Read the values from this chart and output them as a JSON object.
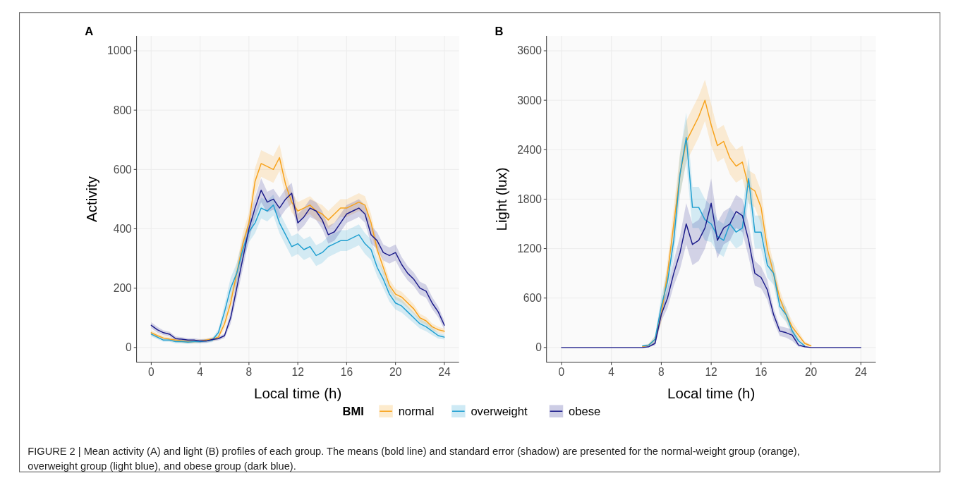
{
  "chart_data": [
    {
      "type": "line",
      "title": "A",
      "xlabel": "Local time (h)",
      "ylabel": "Activity",
      "legend": "bottom",
      "legend_title": "BMI",
      "grid": true,
      "xlim": [
        -1.2,
        25.2
      ],
      "xticks": [
        0,
        4,
        8,
        12,
        16,
        20,
        24
      ],
      "ylim": [
        -50,
        1050
      ],
      "yticks": [
        0,
        200,
        400,
        600,
        800,
        1000
      ],
      "annotations": [
        "FIGURE 2 | Mean activity (A) and light (B) profiles of each group. The means (bold line) and standard error (shadow) are presented for the normal-weight group (orange), overweight group (light blue), and obese group (dark blue)."
      ],
      "x": [
        0,
        0.5,
        1,
        1.5,
        2,
        2.5,
        3,
        3.5,
        4,
        4.5,
        5,
        5.5,
        6,
        6.5,
        7,
        7.5,
        8,
        8.5,
        9,
        9.5,
        10,
        10.5,
        11,
        11.5,
        12,
        12.5,
        13,
        13.5,
        14,
        14.5,
        15,
        15.5,
        16,
        16.5,
        17,
        17.5,
        18,
        18.5,
        19,
        19.5,
        20,
        20.5,
        21,
        21.5,
        22,
        22.5,
        23,
        23.5,
        24
      ],
      "series": [
        {
          "name": "normal",
          "color": "#f7a21b",
          "values": [
            50,
            40,
            32,
            28,
            25,
            22,
            20,
            20,
            22,
            25,
            28,
            35,
            80,
            150,
            250,
            350,
            420,
            560,
            620,
            610,
            600,
            640,
            550,
            490,
            460,
            470,
            480,
            460,
            450,
            430,
            450,
            470,
            470,
            480,
            490,
            480,
            420,
            330,
            270,
            210,
            180,
            170,
            150,
            130,
            100,
            90,
            70,
            60,
            55
          ],
          "lower": [
            42,
            32,
            25,
            21,
            19,
            16,
            14,
            14,
            16,
            19,
            21,
            27,
            62,
            125,
            220,
            315,
            385,
            515,
            575,
            565,
            555,
            595,
            510,
            455,
            430,
            440,
            450,
            430,
            420,
            400,
            420,
            440,
            440,
            450,
            460,
            450,
            390,
            305,
            245,
            190,
            162,
            152,
            133,
            114,
            86,
            77,
            59,
            50,
            46
          ],
          "upper": [
            58,
            48,
            39,
            35,
            31,
            28,
            26,
            26,
            28,
            31,
            35,
            43,
            98,
            175,
            280,
            385,
            455,
            605,
            665,
            655,
            645,
            685,
            590,
            525,
            490,
            500,
            510,
            490,
            480,
            460,
            480,
            500,
            500,
            510,
            520,
            510,
            450,
            355,
            295,
            230,
            198,
            188,
            167,
            146,
            114,
            103,
            81,
            70,
            64
          ]
        },
        {
          "name": "overweight",
          "color": "#1f9fd0",
          "values": [
            45,
            35,
            25,
            25,
            20,
            20,
            18,
            20,
            20,
            22,
            25,
            50,
            120,
            200,
            250,
            330,
            390,
            420,
            470,
            460,
            480,
            420,
            380,
            340,
            350,
            330,
            340,
            310,
            320,
            340,
            350,
            360,
            360,
            370,
            380,
            350,
            330,
            270,
            230,
            180,
            150,
            140,
            120,
            100,
            80,
            70,
            55,
            40,
            35
          ],
          "lower": [
            37,
            28,
            19,
            19,
            14,
            14,
            12,
            14,
            14,
            16,
            18,
            38,
            95,
            165,
            215,
            295,
            355,
            385,
            435,
            425,
            445,
            385,
            345,
            305,
            315,
            295,
            305,
            275,
            285,
            305,
            315,
            325,
            325,
            335,
            345,
            315,
            295,
            240,
            200,
            155,
            128,
            118,
            100,
            82,
            64,
            55,
            42,
            30,
            27
          ],
          "upper": [
            53,
            42,
            31,
            31,
            26,
            26,
            24,
            26,
            26,
            28,
            32,
            62,
            145,
            235,
            285,
            365,
            425,
            455,
            505,
            495,
            515,
            455,
            415,
            375,
            385,
            365,
            375,
            345,
            355,
            375,
            385,
            395,
            395,
            405,
            415,
            385,
            365,
            300,
            260,
            205,
            172,
            162,
            140,
            118,
            96,
            85,
            68,
            50,
            43
          ]
        },
        {
          "name": "obese",
          "color": "#1c1c8a",
          "values": [
            75,
            60,
            50,
            45,
            30,
            28,
            25,
            25,
            22,
            22,
            27,
            30,
            40,
            100,
            200,
            300,
            400,
            470,
            530,
            490,
            500,
            470,
            500,
            520,
            420,
            440,
            470,
            460,
            430,
            380,
            390,
            420,
            450,
            460,
            470,
            450,
            380,
            360,
            320,
            310,
            320,
            280,
            250,
            230,
            200,
            190,
            150,
            120,
            75
          ],
          "lower": [
            65,
            50,
            42,
            37,
            23,
            21,
            19,
            19,
            16,
            16,
            21,
            24,
            32,
            80,
            170,
            265,
            365,
            435,
            490,
            455,
            465,
            435,
            465,
            485,
            390,
            410,
            440,
            430,
            400,
            350,
            360,
            390,
            420,
            430,
            440,
            420,
            350,
            332,
            293,
            283,
            293,
            255,
            226,
            207,
            178,
            168,
            130,
            102,
            60
          ],
          "upper": [
            85,
            70,
            58,
            53,
            37,
            35,
            31,
            31,
            28,
            28,
            33,
            36,
            48,
            120,
            230,
            335,
            435,
            505,
            570,
            525,
            535,
            505,
            535,
            555,
            450,
            470,
            500,
            490,
            460,
            410,
            420,
            450,
            480,
            490,
            500,
            480,
            410,
            388,
            347,
            337,
            347,
            305,
            274,
            253,
            222,
            212,
            170,
            138,
            90
          ]
        }
      ]
    },
    {
      "type": "line",
      "title": "B",
      "xlabel": "Local time (h)",
      "ylabel": "Light (lux)",
      "grid": true,
      "xlim": [
        -1.2,
        25.2
      ],
      "xticks": [
        0,
        4,
        8,
        12,
        16,
        20,
        24
      ],
      "ylim": [
        -180,
        3780
      ],
      "yticks": [
        0,
        600,
        1200,
        1800,
        2400,
        3000,
        3600
      ],
      "x": [
        0,
        0.5,
        1,
        1.5,
        2,
        2.5,
        3,
        3.5,
        4,
        4.5,
        5,
        5.5,
        6,
        6.5,
        7,
        7.5,
        8,
        8.5,
        9,
        9.5,
        10,
        10.5,
        11,
        11.5,
        12,
        12.5,
        13,
        13.5,
        14,
        14.5,
        15,
        15.5,
        16,
        16.5,
        17,
        17.5,
        18,
        18.5,
        19,
        19.5,
        20,
        20.5,
        21,
        21.5,
        22,
        22.5,
        23,
        23.5,
        24
      ],
      "series": [
        {
          "color": "#f7a21b",
          "values": [
            null,
            null,
            null,
            null,
            null,
            null,
            null,
            null,
            null,
            null,
            null,
            null,
            null,
            10,
            30,
            100,
            400,
            900,
            1500,
            2100,
            2500,
            2650,
            2800,
            3000,
            2700,
            2450,
            2500,
            2300,
            2200,
            2250,
            1950,
            1900,
            1700,
            1200,
            900,
            600,
            400,
            250,
            150,
            50,
            20,
            null,
            null,
            null,
            null,
            null,
            null,
            null,
            null
          ],
          "lower": [
            null,
            null,
            null,
            null,
            null,
            null,
            null,
            null,
            null,
            null,
            null,
            null,
            null,
            5,
            15,
            60,
            300,
            750,
            1300,
            1850,
            2250,
            2400,
            2550,
            2750,
            2450,
            2250,
            2300,
            2100,
            2000,
            2050,
            1750,
            1700,
            1500,
            1050,
            780,
            500,
            320,
            180,
            100,
            25,
            8,
            null,
            null,
            null,
            null,
            null,
            null,
            null,
            null
          ],
          "upper": [
            null,
            null,
            null,
            null,
            null,
            null,
            null,
            null,
            null,
            null,
            null,
            null,
            null,
            15,
            45,
            140,
            500,
            1050,
            1700,
            2350,
            2750,
            2900,
            3050,
            3250,
            2950,
            2650,
            2700,
            2500,
            2400,
            2450,
            2150,
            2100,
            1900,
            1350,
            1020,
            700,
            480,
            320,
            200,
            75,
            32,
            null,
            null,
            null,
            null,
            null,
            null,
            null,
            null
          ]
        },
        {
          "color": "#1f9fd0",
          "values": [
            null,
            null,
            null,
            null,
            null,
            null,
            null,
            null,
            null,
            null,
            null,
            null,
            null,
            20,
            30,
            100,
            500,
            800,
            1300,
            2100,
            2550,
            1700,
            1700,
            1550,
            1500,
            1350,
            1300,
            1500,
            1400,
            1450,
            2050,
            1400,
            1400,
            1000,
            900,
            500,
            400,
            200,
            80,
            20,
            null,
            null,
            null,
            null,
            null,
            null,
            null,
            null,
            null
          ],
          "lower": [
            null,
            null,
            null,
            null,
            null,
            null,
            null,
            null,
            null,
            null,
            null,
            null,
            null,
            10,
            15,
            60,
            380,
            650,
            1100,
            1850,
            2250,
            1450,
            1450,
            1300,
            1280,
            1150,
            1100,
            1300,
            1200,
            1250,
            1800,
            1200,
            1200,
            850,
            760,
            400,
            310,
            140,
            50,
            8,
            null,
            null,
            null,
            null,
            null,
            null,
            null,
            null,
            null
          ],
          "upper": [
            null,
            null,
            null,
            null,
            null,
            null,
            null,
            null,
            null,
            null,
            null,
            null,
            null,
            30,
            45,
            140,
            620,
            950,
            1500,
            2350,
            2850,
            1950,
            1950,
            1800,
            1720,
            1550,
            1500,
            1700,
            1600,
            1650,
            2300,
            1600,
            1600,
            1150,
            1040,
            600,
            490,
            260,
            110,
            32,
            null,
            null,
            null,
            null,
            null,
            null,
            null,
            null,
            null
          ]
        },
        {
          "color": "#1c1c8a",
          "values": [
            0,
            0,
            0,
            0,
            0,
            0,
            0,
            0,
            0,
            0,
            0,
            0,
            0,
            0,
            10,
            50,
            400,
            600,
            900,
            1150,
            1500,
            1250,
            1300,
            1450,
            1750,
            1300,
            1450,
            1500,
            1650,
            1600,
            1300,
            900,
            850,
            700,
            400,
            200,
            180,
            150,
            30,
            10,
            0,
            0,
            0,
            0,
            0,
            0,
            0,
            0,
            0
          ],
          "lower": [
            0,
            0,
            0,
            0,
            0,
            0,
            0,
            0,
            0,
            0,
            0,
            0,
            0,
            0,
            5,
            25,
            320,
            480,
            750,
            950,
            1250,
            1000,
            1050,
            1200,
            1450,
            1080,
            1250,
            1300,
            1450,
            1400,
            1100,
            750,
            720,
            580,
            320,
            140,
            120,
            80,
            10,
            3,
            0,
            0,
            0,
            0,
            0,
            0,
            0,
            0,
            0
          ],
          "upper": [
            0,
            0,
            0,
            0,
            0,
            0,
            0,
            0,
            0,
            0,
            0,
            0,
            0,
            0,
            15,
            75,
            480,
            720,
            1050,
            1350,
            1750,
            1500,
            1550,
            1700,
            2050,
            1520,
            1650,
            1700,
            1850,
            1800,
            1500,
            1050,
            980,
            820,
            480,
            260,
            240,
            220,
            50,
            17,
            0,
            0,
            0,
            0,
            0,
            0,
            0,
            0,
            0
          ]
        }
      ]
    }
  ]
}
